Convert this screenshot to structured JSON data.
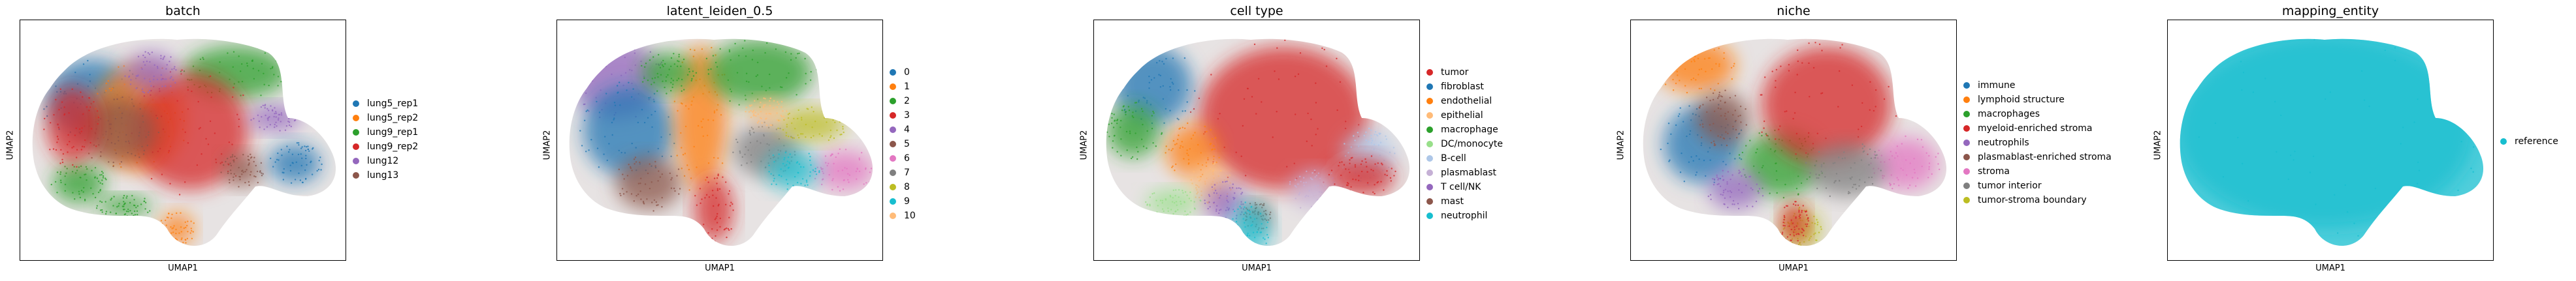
{
  "chart_data": [
    {
      "type": "scatter",
      "title": "batch",
      "xlabel": "UMAP1",
      "ylabel": "UMAP2",
      "grid": false,
      "legend_position": "right",
      "series": [
        {
          "name": "lung5_rep1",
          "color": "#1f77b4"
        },
        {
          "name": "lung5_rep2",
          "color": "#ff7f0e"
        },
        {
          "name": "lung9_rep1",
          "color": "#2ca02c"
        },
        {
          "name": "lung9_rep2",
          "color": "#d62728"
        },
        {
          "name": "lung12",
          "color": "#9467bd"
        },
        {
          "name": "lung13",
          "color": "#8c564b"
        }
      ]
    },
    {
      "type": "scatter",
      "title": "latent_leiden_0.5",
      "xlabel": "UMAP1",
      "ylabel": "UMAP2",
      "grid": false,
      "legend_position": "right",
      "series": [
        {
          "name": "0",
          "color": "#1f77b4"
        },
        {
          "name": "1",
          "color": "#ff7f0e"
        },
        {
          "name": "2",
          "color": "#2ca02c"
        },
        {
          "name": "3",
          "color": "#d62728"
        },
        {
          "name": "4",
          "color": "#9467bd"
        },
        {
          "name": "5",
          "color": "#8c564b"
        },
        {
          "name": "6",
          "color": "#e377c2"
        },
        {
          "name": "7",
          "color": "#7f7f7f"
        },
        {
          "name": "8",
          "color": "#bcbd22"
        },
        {
          "name": "9",
          "color": "#17becf"
        },
        {
          "name": "10",
          "color": "#ffbb78"
        }
      ]
    },
    {
      "type": "scatter",
      "title": "cell type",
      "xlabel": "UMAP1",
      "ylabel": "UMAP2",
      "grid": false,
      "legend_position": "right",
      "series": [
        {
          "name": "tumor",
          "color": "#d62728"
        },
        {
          "name": "fibroblast",
          "color": "#1f77b4"
        },
        {
          "name": "endothelial",
          "color": "#ff7f0e"
        },
        {
          "name": "epithelial",
          "color": "#ffbb78"
        },
        {
          "name": "macrophage",
          "color": "#2ca02c"
        },
        {
          "name": "DC/monocyte",
          "color": "#98df8a"
        },
        {
          "name": "B-cell",
          "color": "#aec7e8"
        },
        {
          "name": "plasmablast",
          "color": "#c5b0d5"
        },
        {
          "name": "T cell/NK",
          "color": "#9467bd"
        },
        {
          "name": "mast",
          "color": "#8c564b"
        },
        {
          "name": "neutrophil",
          "color": "#17becf"
        }
      ]
    },
    {
      "type": "scatter",
      "title": "niche",
      "xlabel": "UMAP1",
      "ylabel": "UMAP2",
      "grid": false,
      "legend_position": "right",
      "series": [
        {
          "name": "immune",
          "color": "#1f77b4"
        },
        {
          "name": "lymphoid structure",
          "color": "#ff7f0e"
        },
        {
          "name": "macrophages",
          "color": "#2ca02c"
        },
        {
          "name": "myeloid-enriched stroma",
          "color": "#d62728"
        },
        {
          "name": "neutrophils",
          "color": "#9467bd"
        },
        {
          "name": "plasmablast-enriched stroma",
          "color": "#8c564b"
        },
        {
          "name": "stroma",
          "color": "#e377c2"
        },
        {
          "name": "tumor interior",
          "color": "#7f7f7f"
        },
        {
          "name": "tumor-stroma boundary",
          "color": "#bcbd22"
        }
      ]
    },
    {
      "type": "scatter",
      "title": "mapping_entity",
      "xlabel": "UMAP1",
      "ylabel": "UMAP2",
      "grid": false,
      "legend_position": "right",
      "series": [
        {
          "name": "reference",
          "color": "#17becf"
        }
      ]
    }
  ]
}
